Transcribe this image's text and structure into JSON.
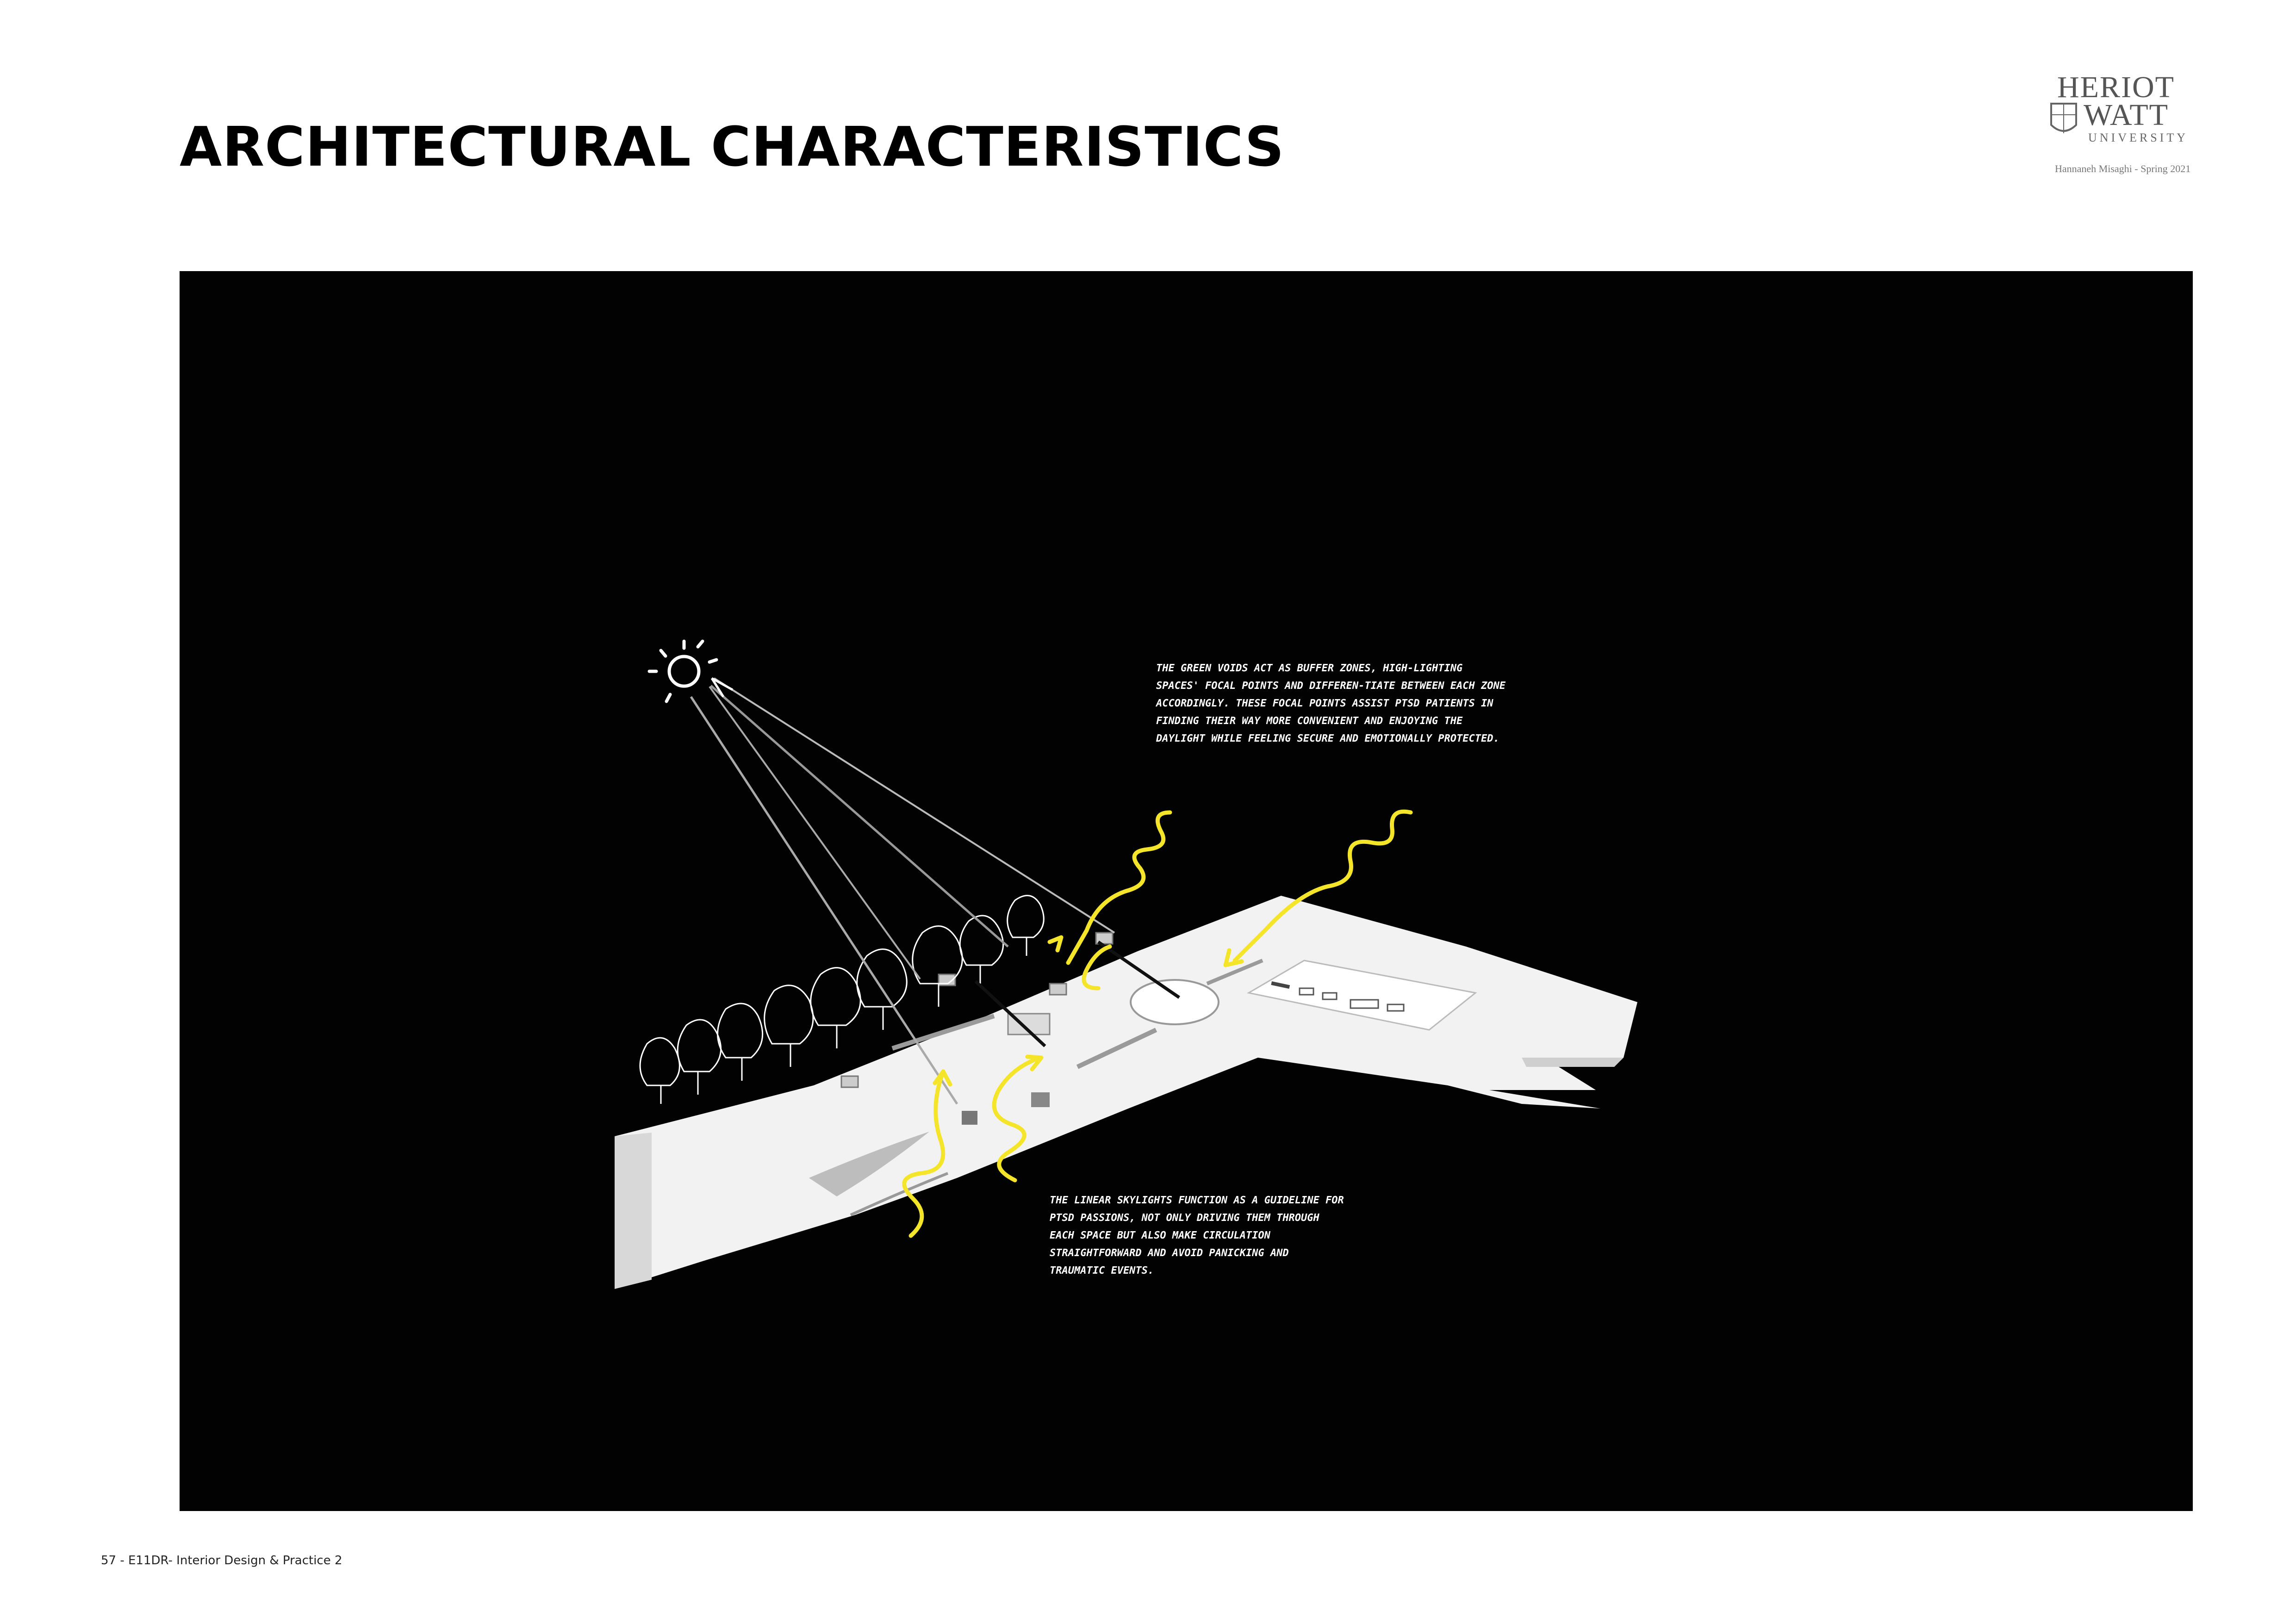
{
  "header": {
    "title": "ARCHITECTURAL CHARACTERISTICS"
  },
  "logo": {
    "line1": "HERIOT",
    "line2": "WATT",
    "line3": "UNIVERSITY",
    "credit": "Hannaneh Misaghi - Spring 2021"
  },
  "figure": {
    "note_top": "The green voids act as buffer zones, high-lighting spaces' focal points and differen-tiate between each zone accordingly. These focal points assist PTSD patients in finding their way more convenient and enjoying the daylight while feeling secure and emotionally protected.",
    "note_bottom": "The linear skylights function as a guideline for PTSD passions, not only driving them through each space but also make circulation straightforward and avoid panicking and traumatic events.",
    "icons": [
      "sun-icon",
      "tree-icon",
      "arrow-icon",
      "squiggle-arrow-icon"
    ],
    "colors": {
      "background": "#020202",
      "accent": "#f5e52a",
      "model": "#f2f2f2",
      "sketch": "#ffffff"
    }
  },
  "footer": {
    "text": "57  - E11DR- Interior Design & Practice 2"
  }
}
